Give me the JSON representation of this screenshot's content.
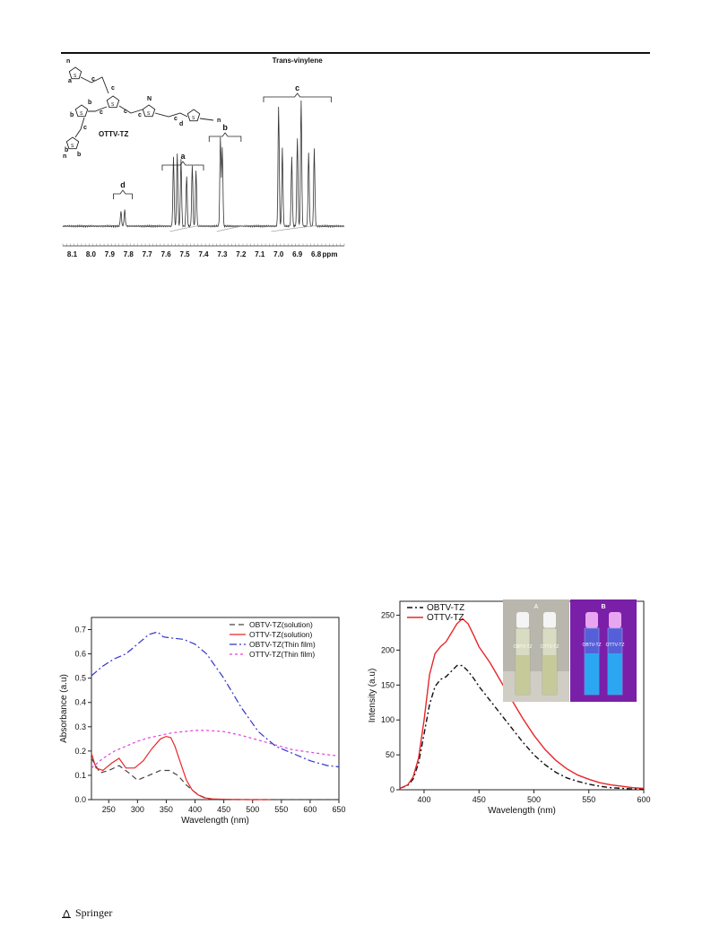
{
  "figures": {
    "nmr": {
      "compound_label": "OTTV-TZ",
      "structure_letters": [
        "n",
        "a",
        "c",
        "c",
        "b",
        "b",
        "c",
        "c",
        "N",
        "c",
        "c",
        "d",
        "n",
        "b",
        "c",
        "b",
        "n",
        "S",
        "S",
        "S",
        "S",
        "S",
        "S"
      ],
      "peak_labels": {
        "a": "a",
        "b": "b",
        "c": "c",
        "d": "d"
      },
      "header": "Trans-vinylene",
      "x_unit": "ppm",
      "chart_data": {
        "type": "line",
        "xlabel": "ppm",
        "xlim": [
          8.15,
          6.65
        ],
        "x_ticks": [
          "8.1",
          "8.0",
          "7.9",
          "7.8",
          "7.7",
          "7.6",
          "7.5",
          "7.4",
          "7.3",
          "7.2",
          "7.1",
          "7.0",
          "6.9",
          "6.8"
        ],
        "peaks": [
          {
            "group": "d",
            "ppm": [
              7.84,
              7.82
            ],
            "rel_height": [
              0.12,
              0.13
            ]
          },
          {
            "group": "a",
            "ppm": [
              7.56,
              7.54,
              7.52,
              7.49,
              7.46,
              7.44
            ],
            "rel_height": [
              0.55,
              0.58,
              0.54,
              0.4,
              0.48,
              0.44
            ]
          },
          {
            "group": "b",
            "ppm": [
              7.31,
              7.3
            ],
            "rel_height": [
              0.7,
              0.62
            ]
          },
          {
            "group": "c",
            "ppm": [
              7.0,
              6.98,
              6.93,
              6.9,
              6.88,
              6.84,
              6.81
            ],
            "rel_height": [
              0.95,
              0.62,
              0.55,
              0.7,
              1.0,
              0.58,
              0.62
            ]
          }
        ]
      }
    },
    "absorbance": {
      "chart_data": {
        "type": "line",
        "xlabel": "Wavelength (nm)",
        "ylabel": "Absorbance (a.u)",
        "xlim": [
          220,
          650
        ],
        "ylim": [
          0.0,
          0.75
        ],
        "x_ticks": [
          250,
          300,
          350,
          400,
          450,
          500,
          550,
          600,
          650
        ],
        "y_ticks": [
          "0.0",
          "0.1",
          "0.2",
          "0.3",
          "0.4",
          "0.5",
          "0.6",
          "0.7"
        ],
        "legend_position": "top-right",
        "series": [
          {
            "name": "OBTV-TZ(solution)",
            "color": "#444444",
            "dash": "6,4",
            "x": [
              220,
              235,
              250,
              268,
              285,
              300,
              320,
              340,
              355,
              370,
              385,
              400,
              410,
              420,
              440,
              480,
              540,
              650
            ],
            "y": [
              0.17,
              0.11,
              0.12,
              0.14,
              0.11,
              0.08,
              0.1,
              0.12,
              0.12,
              0.1,
              0.06,
              0.03,
              0.015,
              0.005,
              0.0,
              0.0,
              0.0,
              0.0
            ]
          },
          {
            "name": "OTTV-TZ(solution)",
            "color": "#e8262a",
            "dash": "",
            "x": [
              220,
              228,
              240,
              255,
              268,
              280,
              295,
              310,
              325,
              340,
              350,
              358,
              365,
              375,
              385,
              395,
              405,
              415,
              430,
              460,
              500,
              530
            ],
            "y": [
              0.19,
              0.13,
              0.12,
              0.15,
              0.17,
              0.13,
              0.13,
              0.16,
              0.21,
              0.25,
              0.26,
              0.255,
              0.22,
              0.15,
              0.08,
              0.04,
              0.02,
              0.008,
              0.003,
              0.001,
              0.0,
              0.0
            ]
          },
          {
            "name": "OBTV-TZ(Thin film)",
            "color": "#3333cc",
            "dash": "8,3,2,3",
            "x": [
              220,
              240,
              260,
              280,
              300,
              320,
              335,
              345,
              360,
              380,
              400,
              420,
              450,
              480,
              510,
              540,
              570,
              600,
              630,
              650
            ],
            "y": [
              0.51,
              0.55,
              0.58,
              0.6,
              0.64,
              0.68,
              0.69,
              0.67,
              0.665,
              0.66,
              0.64,
              0.6,
              0.5,
              0.38,
              0.28,
              0.22,
              0.19,
              0.16,
              0.14,
              0.135
            ]
          },
          {
            "name": "OTTV-TZ(Thin film)",
            "color": "#e040e0",
            "dash": "3,3",
            "x": [
              220,
              240,
              260,
              280,
              300,
              320,
              340,
              360,
              380,
              400,
              420,
              450,
              480,
              510,
              540,
              570,
              600,
              630,
              650
            ],
            "y": [
              0.13,
              0.17,
              0.2,
              0.22,
              0.24,
              0.255,
              0.265,
              0.275,
              0.28,
              0.285,
              0.285,
              0.28,
              0.265,
              0.245,
              0.225,
              0.205,
              0.195,
              0.185,
              0.18
            ]
          }
        ]
      }
    },
    "emission": {
      "inset": {
        "label_a": "A",
        "label_b": "B",
        "vial_labels": [
          "OBTV-TZ",
          "OTTV-TZ"
        ]
      },
      "chart_data": {
        "type": "line",
        "xlabel": "Wavelength (nm)",
        "ylabel": "Intensity (a.u)",
        "xlim": [
          378,
          600
        ],
        "ylim": [
          0,
          270
        ],
        "x_ticks": [
          400,
          450,
          500,
          550,
          600
        ],
        "y_ticks": [
          0,
          50,
          100,
          150,
          200,
          250
        ],
        "legend_position": "top-left",
        "series": [
          {
            "name": "OBTV-TZ",
            "color": "#111111",
            "dash": "6,3,2,3",
            "x": [
              378,
              385,
              390,
              395,
              400,
              405,
              410,
              415,
              420,
              425,
              430,
              435,
              440,
              445,
              450,
              460,
              470,
              480,
              490,
              500,
              510,
              520,
              530,
              540,
              550,
              560,
              570,
              580,
              590,
              600
            ],
            "y": [
              2,
              6,
              15,
              38,
              80,
              122,
              148,
              158,
              162,
              170,
              178,
              178,
              170,
              160,
              148,
              128,
              108,
              88,
              68,
              50,
              36,
              25,
              17,
              12,
              8,
              5,
              3,
              2,
              1,
              1
            ]
          },
          {
            "name": "OTTV-TZ",
            "color": "#e8262a",
            "dash": "",
            "x": [
              378,
              385,
              390,
              395,
              400,
              405,
              410,
              415,
              420,
              425,
              430,
              435,
              440,
              445,
              450,
              460,
              470,
              480,
              490,
              500,
              510,
              520,
              530,
              540,
              550,
              560,
              570,
              580,
              590,
              600
            ],
            "y": [
              2,
              7,
              18,
              45,
              100,
              165,
              195,
              205,
              212,
              225,
              238,
              245,
              238,
              222,
              205,
              182,
              155,
              128,
              102,
              78,
              58,
              42,
              30,
              21,
              15,
              10,
              7,
              5,
              3,
              2
            ]
          }
        ]
      }
    }
  },
  "footer": {
    "publisher": "Springer"
  }
}
